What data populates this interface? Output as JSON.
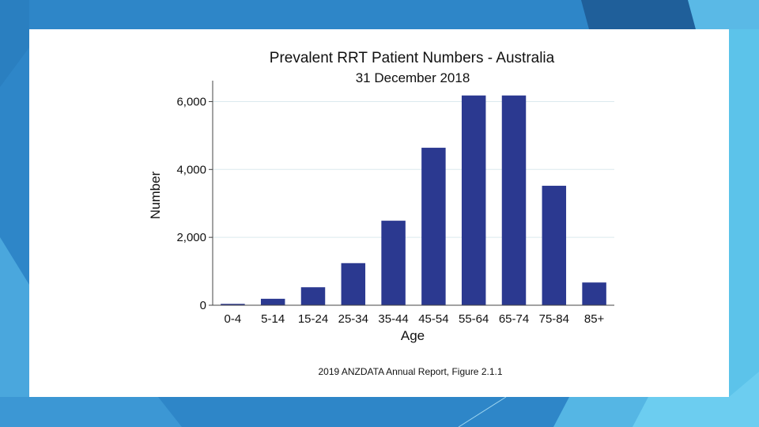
{
  "slide": {
    "background_color": "#2e86c8",
    "accent_colors": [
      "#1f5f9a",
      "#5cc3ea",
      "#4aa7dd"
    ]
  },
  "chart_data": {
    "type": "bar",
    "title": "Prevalent RRT Patient Numbers - Australia",
    "subtitle": "31 December 2018",
    "xlabel": "Age",
    "ylabel": "Number",
    "categories": [
      "0-4",
      "5-14",
      "15-24",
      "25-34",
      "35-44",
      "45-54",
      "55-64",
      "65-74",
      "75-84",
      "85+"
    ],
    "values": [
      40,
      190,
      530,
      1240,
      2490,
      4640,
      6180,
      6180,
      3520,
      670
    ],
    "ylim": [
      0,
      6500
    ],
    "yticks": [
      0,
      2000,
      4000,
      6000
    ],
    "ytick_labels": [
      "0",
      "2,000",
      "4,000",
      "6,000"
    ],
    "grid": true,
    "bar_color": "#2b3990",
    "source": "2019 ANZDATA Annual Report, Figure 2.1.1"
  }
}
